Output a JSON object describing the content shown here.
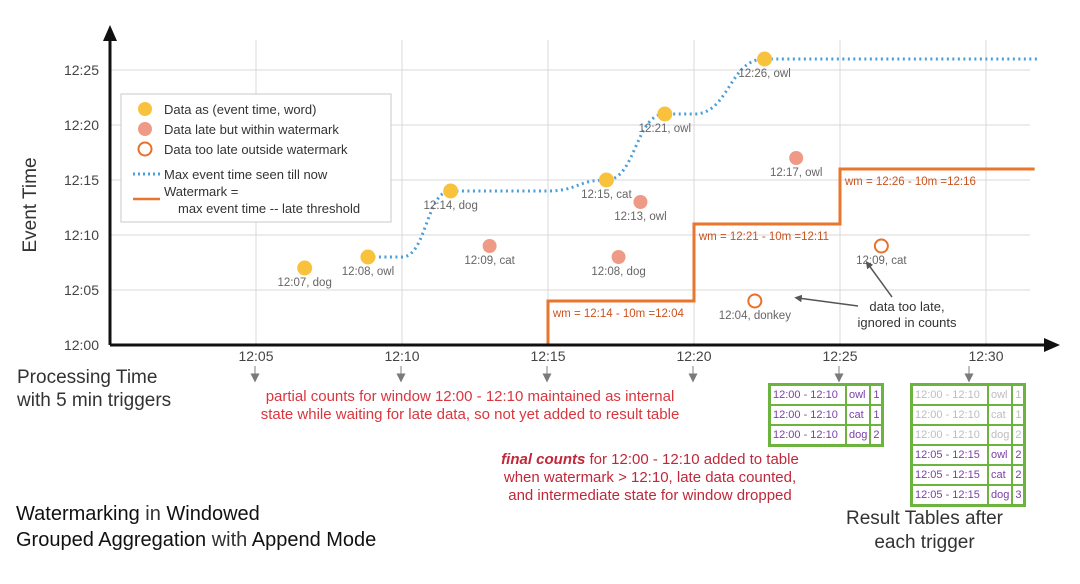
{
  "chart_data": {
    "type": "scatter",
    "ylabel": "Event Time",
    "xlabel": "Processing Time with 5 min triggers",
    "x_ticks": [
      "12:05",
      "12:10",
      "12:15",
      "12:20",
      "12:25",
      "12:30"
    ],
    "y_ticks": [
      "12:00",
      "12:05",
      "12:10",
      "12:15",
      "12:20",
      "12:25"
    ],
    "xlim": [
      "12:00",
      "12:32"
    ],
    "ylim": [
      "12:00",
      "12:27"
    ],
    "legend": {
      "placement": "top-left",
      "on_time": "Data as (event time, word)",
      "late_within": "Data late but within watermark",
      "too_late": "Data too late outside watermark",
      "max_event_line": "Max event time seen till now",
      "watermark_line_1": "Watermark =",
      "watermark_line_2": "max event time -- late threshold"
    },
    "colors": {
      "on_time": "#f9c23c",
      "late_within": "#ee9a86",
      "too_late": "#e8702a",
      "max_event_line": "#4a9fd8",
      "watermark_line": "#e8762c",
      "axis": "#111111",
      "grid": "#d8d8d8",
      "annotation": "#d9363e",
      "table_border": "#6db33f",
      "table_text": "#7b3fa8"
    },
    "points": [
      {
        "x": "12:06:40",
        "y": "12:07",
        "label": "12:07, dog",
        "kind": "on_time"
      },
      {
        "x": "12:08:50",
        "y": "12:08",
        "label": "12:08, owl",
        "kind": "on_time"
      },
      {
        "x": "12:11:40",
        "y": "12:14",
        "label": "12:14, dog",
        "kind": "on_time"
      },
      {
        "x": "12:13:00",
        "y": "12:09",
        "label": "12:09, cat",
        "kind": "late_within"
      },
      {
        "x": "12:17:00",
        "y": "12:15",
        "label": "12:15, cat",
        "kind": "on_time"
      },
      {
        "x": "12:17:25",
        "y": "12:08",
        "label": "12:08, dog",
        "kind": "late_within"
      },
      {
        "x": "12:18:10",
        "y": "12:13",
        "label": "12:13, owl",
        "kind": "late_within"
      },
      {
        "x": "12:19:00",
        "y": "12:21",
        "label": "12:21, owl",
        "kind": "on_time"
      },
      {
        "x": "12:22:05",
        "y": "12:04",
        "label": "12:04, donkey",
        "kind": "too_late"
      },
      {
        "x": "12:22:25",
        "y": "12:26",
        "label": "12:26, owl",
        "kind": "on_time"
      },
      {
        "x": "12:23:30",
        "y": "12:17",
        "label": "12:17, owl",
        "kind": "late_within"
      },
      {
        "x": "12:26:25",
        "y": "12:09",
        "label": "12:09, cat",
        "kind": "too_late"
      }
    ],
    "max_event_time": [
      {
        "x": "12:08:50",
        "y": "12:08"
      },
      {
        "x": "12:10:00",
        "y": "12:08"
      },
      {
        "x": "12:11:40",
        "y": "12:14"
      },
      {
        "x": "12:15:00",
        "y": "12:14"
      },
      {
        "x": "12:17:00",
        "y": "12:15"
      },
      {
        "x": "12:19:00",
        "y": "12:21"
      },
      {
        "x": "12:20:00",
        "y": "12:21"
      },
      {
        "x": "12:22:25",
        "y": "12:26"
      },
      {
        "x": "12:31:45",
        "y": "12:26"
      }
    ],
    "watermark": [
      {
        "x": "12:15:00",
        "y": "12:00"
      },
      {
        "x": "12:15:00",
        "y": "12:04"
      },
      {
        "x": "12:20:00",
        "y": "12:04"
      },
      {
        "x": "12:20:00",
        "y": "12:11"
      },
      {
        "x": "12:25:00",
        "y": "12:11"
      },
      {
        "x": "12:25:00",
        "y": "12:16"
      },
      {
        "x": "12:31:40",
        "y": "12:16"
      }
    ],
    "watermark_labels": [
      {
        "text": "wm = 12:14 - 10m =12:04",
        "x": "12:15:10",
        "y": "12:04"
      },
      {
        "text": "wm = 12:21 - 10m =12:11",
        "x": "12:20:10",
        "y": "12:11"
      },
      {
        "text": "wm = 12:26 - 10m =12:16",
        "x": "12:25:10",
        "y": "12:16"
      }
    ]
  },
  "annotations": {
    "too_late_line_1": "data too late,",
    "too_late_line_2": "ignored in counts",
    "partial_line_1": "partial counts for window 12:00 - 12:10 maintained as internal",
    "partial_line_2": "state while waiting for late data, so not yet added  to result table",
    "final_emph": "final counts",
    "final_line_1_rest": " for 12:00 - 12:10 added to table",
    "final_line_2": "when watermark > 12:10, late data counted,",
    "final_line_3": "and intermediate state for window dropped",
    "processing_line_1": "Processing Time",
    "processing_line_2": "with 5 min triggers"
  },
  "title": {
    "line1_a": "Watermarking",
    "line1_b": " in ",
    "line1_c": "Windowed",
    "line2_a": "Grouped Aggregation",
    "line2_b": " with ",
    "line2_c": "Append Mode"
  },
  "result_caption": {
    "line1": "Result Tables after",
    "line2": "each trigger"
  },
  "result_tables": [
    {
      "trigger": "12:25",
      "rows": [
        {
          "window": "12:00 - 12:10",
          "word": "owl",
          "count": "1",
          "faded": false
        },
        {
          "window": "12:00 - 12:10",
          "word": "cat",
          "count": "1",
          "faded": false
        },
        {
          "window": "12:00 - 12:10",
          "word": "dog",
          "count": "2",
          "faded": false
        }
      ]
    },
    {
      "trigger": "12:30",
      "rows": [
        {
          "window": "12:00 - 12:10",
          "word": "owl",
          "count": "1",
          "faded": true
        },
        {
          "window": "12:00 - 12:10",
          "word": "cat",
          "count": "1",
          "faded": true
        },
        {
          "window": "12:00 - 12:10",
          "word": "dog",
          "count": "2",
          "faded": true
        },
        {
          "window": "12:05 - 12:15",
          "word": "owl",
          "count": "2",
          "faded": false
        },
        {
          "window": "12:05 - 12:15",
          "word": "cat",
          "count": "2",
          "faded": false
        },
        {
          "window": "12:05 - 12:15",
          "word": "dog",
          "count": "3",
          "faded": false
        }
      ]
    }
  ]
}
